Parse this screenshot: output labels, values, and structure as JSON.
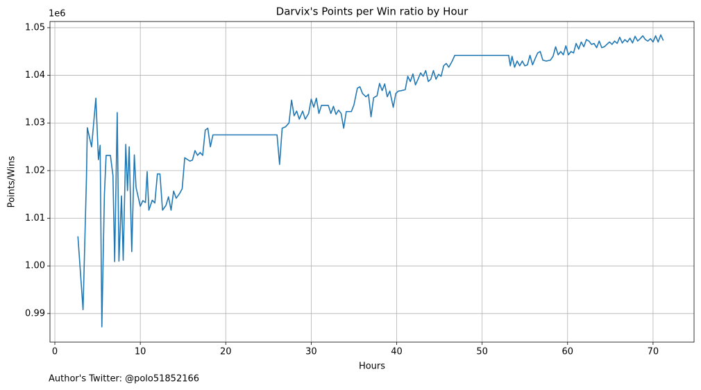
{
  "chart_data": {
    "type": "line",
    "title": "Darvix's Points per Win ratio by Hour",
    "xlabel": "Hours",
    "ylabel": "Points/Wins",
    "y_offset_label": "1e6",
    "footer": "Author's Twitter: @polo51852166",
    "grid": true,
    "xlim": [
      -0.57,
      74.8
    ],
    "ylim": [
      0.984,
      1.0513
    ],
    "xticks": [
      0,
      10,
      20,
      30,
      40,
      50,
      60,
      70
    ],
    "yticks": [
      0.99,
      {
        "value": 1,
        "label": "1.00"
      },
      1.01,
      1.02,
      1.03,
      1.04,
      1.05
    ],
    "x": [
      2.7,
      3.3,
      3.7,
      3.8,
      4.3,
      4.8,
      5.1,
      5.3,
      5.5,
      5.8,
      6.0,
      6.5,
      6.8,
      7.0,
      7.3,
      7.5,
      7.8,
      8.0,
      8.3,
      8.5,
      8.7,
      9.0,
      9.3,
      9.5,
      10.0,
      10.3,
      10.6,
      10.8,
      11.0,
      11.4,
      11.7,
      12.0,
      12.3,
      12.6,
      13.0,
      13.3,
      13.6,
      13.9,
      14.2,
      14.6,
      14.9,
      15.2,
      15.8,
      16.1,
      16.4,
      16.7,
      17.0,
      17.3,
      17.6,
      17.9,
      18.2,
      18.5,
      26.0,
      26.3,
      26.6,
      27.0,
      27.4,
      27.7,
      28.0,
      28.3,
      28.6,
      29.0,
      29.3,
      29.7,
      30.0,
      30.3,
      30.6,
      30.9,
      31.2,
      32.0,
      32.3,
      32.6,
      32.9,
      33.2,
      33.5,
      33.8,
      34.1,
      34.7,
      35.0,
      35.4,
      35.7,
      36.0,
      36.4,
      36.7,
      37.0,
      37.3,
      37.7,
      38.0,
      38.3,
      38.6,
      38.9,
      39.2,
      39.6,
      39.9,
      40.2,
      40.6,
      41.0,
      41.3,
      41.6,
      41.9,
      42.2,
      42.5,
      42.8,
      43.1,
      43.4,
      43.7,
      44.0,
      44.3,
      44.6,
      44.9,
      45.2,
      45.5,
      45.8,
      46.1,
      46.5,
      46.8,
      53.1,
      53.3,
      53.5,
      53.8,
      54.1,
      54.4,
      54.7,
      55.0,
      55.3,
      55.6,
      55.9,
      56.2,
      56.5,
      56.8,
      57.1,
      57.5,
      58.0,
      58.3,
      58.6,
      58.9,
      59.2,
      59.5,
      59.8,
      60.1,
      60.4,
      60.7,
      61.0,
      61.3,
      61.6,
      61.9,
      62.2,
      62.5,
      62.8,
      63.1,
      63.4,
      63.7,
      64.0,
      64.3,
      64.6,
      64.9,
      65.2,
      65.5,
      65.8,
      66.1,
      66.4,
      66.7,
      67.0,
      67.3,
      67.6,
      67.9,
      68.2,
      68.5,
      68.8,
      69.1,
      69.4,
      69.7,
      70.0,
      70.3,
      70.6,
      70.9,
      71.2
    ],
    "series": [
      {
        "name": "Points/Wins",
        "color": "#1f77b4",
        "values": [
          1.0062,
          0.9908,
          1.0185,
          1.029,
          1.025,
          1.0352,
          1.0223,
          1.0253,
          0.9872,
          1.015,
          1.0232,
          1.0232,
          1.019,
          1.0009,
          1.0322,
          1.001,
          1.0147,
          1.0012,
          1.0255,
          1.0158,
          1.025,
          1.003,
          1.0233,
          1.0165,
          1.0125,
          1.0137,
          1.0133,
          1.0198,
          1.0117,
          1.0138,
          1.0132,
          1.0193,
          1.0193,
          1.0117,
          1.0127,
          1.0145,
          1.0117,
          1.0157,
          1.0142,
          1.0152,
          1.0162,
          1.0227,
          1.022,
          1.0222,
          1.0242,
          1.0232,
          1.0238,
          1.0232,
          1.0285,
          1.0289,
          1.025,
          1.0275,
          1.0275,
          1.0213,
          1.0289,
          1.0292,
          1.03,
          1.0348,
          1.0315,
          1.0325,
          1.0308,
          1.0325,
          1.0308,
          1.032,
          1.035,
          1.0333,
          1.0352,
          1.032,
          1.0337,
          1.0337,
          1.032,
          1.0335,
          1.0318,
          1.0327,
          1.032,
          1.0289,
          1.0324,
          1.0324,
          1.0338,
          1.0373,
          1.0376,
          1.0362,
          1.0355,
          1.036,
          1.0313,
          1.0353,
          1.0357,
          1.0383,
          1.0368,
          1.0382,
          1.0355,
          1.0367,
          1.0333,
          1.0362,
          1.0367,
          1.0368,
          1.037,
          1.0398,
          1.0387,
          1.0403,
          1.038,
          1.0392,
          1.0405,
          1.0398,
          1.041,
          1.0387,
          1.0392,
          1.041,
          1.0392,
          1.0402,
          1.0398,
          1.042,
          1.0425,
          1.0417,
          1.043,
          1.0442,
          1.0442,
          1.042,
          1.044,
          1.0417,
          1.043,
          1.042,
          1.043,
          1.042,
          1.0422,
          1.0442,
          1.0422,
          1.0435,
          1.0447,
          1.045,
          1.0432,
          1.043,
          1.0432,
          1.044,
          1.046,
          1.0443,
          1.045,
          1.0443,
          1.0462,
          1.0443,
          1.045,
          1.0447,
          1.0467,
          1.0455,
          1.047,
          1.046,
          1.0475,
          1.0472,
          1.0465,
          1.0467,
          1.0458,
          1.0472,
          1.0458,
          1.046,
          1.0465,
          1.047,
          1.0465,
          1.0472,
          1.0467,
          1.048,
          1.0468,
          1.0475,
          1.047,
          1.0478,
          1.0468,
          1.0482,
          1.0472,
          1.0477,
          1.0483,
          1.0475,
          1.0472,
          1.0477,
          1.047,
          1.0483,
          1.047,
          1.0485,
          1.0473
        ]
      }
    ]
  }
}
